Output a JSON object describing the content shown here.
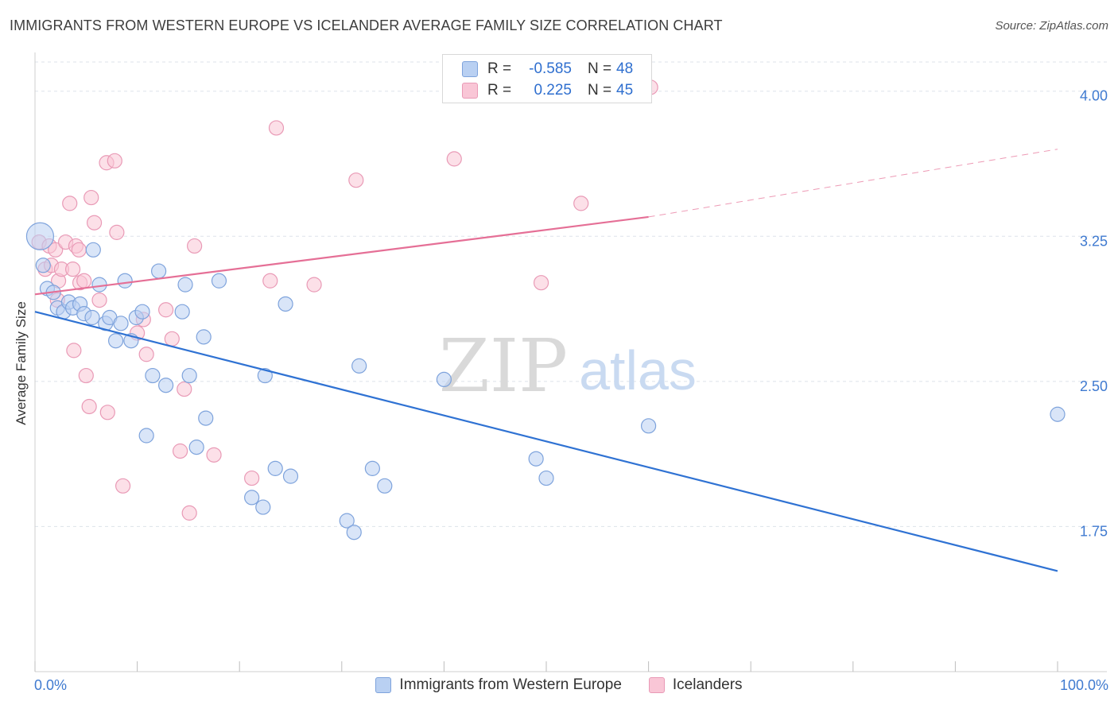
{
  "header": {
    "title": "IMMIGRANTS FROM WESTERN EUROPE VS ICELANDER AVERAGE FAMILY SIZE CORRELATION CHART",
    "source": "Source: ZipAtlas.com"
  },
  "legend": {
    "blue_label": "Immigrants from Western Europe",
    "pink_label": "Icelanders"
  },
  "stats": {
    "r_label": "R =",
    "n_label": "N =",
    "blue": {
      "r": "-0.585",
      "n": "48"
    },
    "pink": {
      "r": "0.225",
      "n": "45"
    }
  },
  "colors": {
    "blue_fill": "#b9d0f2",
    "blue_stroke": "#7ea3dc",
    "blue_line": "#2f72d3",
    "pink_fill": "#f9c6d6",
    "pink_stroke": "#e99ab6",
    "pink_line": "#e56f96",
    "grid": "#dde3ea",
    "tick_text": "#3f7ad0"
  },
  "chart_data": {
    "type": "scatter",
    "title": "IMMIGRANTS FROM WESTERN EUROPE VS ICELANDER AVERAGE FAMILY SIZE CORRELATION CHART",
    "xlabel": "",
    "ylabel": "Average Family Size",
    "x_tick_labels": [
      "0.0%",
      "100.0%"
    ],
    "xlim": [
      0,
      100
    ],
    "ylim": [
      1.0,
      4.2
    ],
    "yticks": [
      1.75,
      2.5,
      3.25,
      4.0
    ],
    "ytick_labels": [
      "1.75",
      "2.50",
      "3.25",
      "4.00"
    ],
    "grid": true,
    "watermark": {
      "zip": "ZIP",
      "atlas": "atlas"
    },
    "series": [
      {
        "name": "Immigrants from Western Europe",
        "color": "blue",
        "points": [
          [
            0.5,
            3.25
          ],
          [
            0.8,
            3.1
          ],
          [
            1.2,
            2.98
          ],
          [
            1.8,
            2.96
          ],
          [
            2.2,
            2.88
          ],
          [
            2.8,
            2.86
          ],
          [
            3.3,
            2.91
          ],
          [
            3.7,
            2.88
          ],
          [
            4.4,
            2.9
          ],
          [
            4.8,
            2.85
          ],
          [
            5.6,
            2.83
          ],
          [
            5.7,
            3.18
          ],
          [
            6.3,
            3.0
          ],
          [
            6.9,
            2.8
          ],
          [
            7.3,
            2.83
          ],
          [
            7.9,
            2.71
          ],
          [
            8.4,
            2.8
          ],
          [
            8.8,
            3.02
          ],
          [
            9.4,
            2.71
          ],
          [
            9.9,
            2.83
          ],
          [
            10.5,
            2.86
          ],
          [
            11.5,
            2.53
          ],
          [
            12.1,
            3.07
          ],
          [
            12.8,
            2.48
          ],
          [
            14.4,
            2.86
          ],
          [
            14.7,
            3.0
          ],
          [
            15.1,
            2.53
          ],
          [
            15.8,
            2.16
          ],
          [
            16.5,
            2.73
          ],
          [
            16.7,
            2.31
          ],
          [
            18.0,
            3.02
          ],
          [
            10.9,
            2.22
          ],
          [
            21.2,
            1.9
          ],
          [
            22.3,
            1.85
          ],
          [
            22.5,
            2.53
          ],
          [
            23.5,
            2.05
          ],
          [
            24.5,
            2.9
          ],
          [
            25.0,
            2.01
          ],
          [
            30.5,
            1.78
          ],
          [
            31.2,
            1.72
          ],
          [
            31.7,
            2.58
          ],
          [
            33.0,
            2.05
          ],
          [
            34.2,
            1.96
          ],
          [
            40.0,
            2.51
          ],
          [
            49.0,
            2.1
          ],
          [
            50.0,
            2.0
          ],
          [
            60.0,
            2.27
          ],
          [
            100.0,
            2.33
          ]
        ],
        "trend": {
          "x0": 0,
          "y0": 2.86,
          "x1": 100,
          "y1": 1.52
        }
      },
      {
        "name": "Icelanders",
        "color": "pink",
        "points": [
          [
            0.4,
            3.22
          ],
          [
            1.0,
            3.08
          ],
          [
            1.4,
            3.2
          ],
          [
            1.6,
            3.1
          ],
          [
            2.0,
            3.18
          ],
          [
            2.2,
            2.92
          ],
          [
            2.3,
            3.02
          ],
          [
            2.6,
            3.08
          ],
          [
            3.0,
            3.22
          ],
          [
            3.4,
            3.42
          ],
          [
            3.7,
            3.08
          ],
          [
            3.8,
            2.66
          ],
          [
            4.0,
            3.2
          ],
          [
            4.3,
            3.18
          ],
          [
            4.4,
            3.01
          ],
          [
            4.8,
            3.02
          ],
          [
            5.0,
            2.53
          ],
          [
            5.3,
            2.37
          ],
          [
            5.5,
            3.45
          ],
          [
            5.8,
            3.32
          ],
          [
            6.3,
            2.92
          ],
          [
            7.1,
            2.34
          ],
          [
            7.0,
            3.63
          ],
          [
            7.8,
            3.64
          ],
          [
            8.0,
            3.27
          ],
          [
            8.6,
            1.96
          ],
          [
            10.0,
            2.75
          ],
          [
            10.6,
            2.82
          ],
          [
            10.9,
            2.64
          ],
          [
            12.8,
            2.87
          ],
          [
            13.4,
            2.72
          ],
          [
            14.2,
            2.14
          ],
          [
            14.6,
            2.46
          ],
          [
            15.1,
            1.82
          ],
          [
            15.6,
            3.2
          ],
          [
            17.5,
            2.12
          ],
          [
            21.2,
            2.0
          ],
          [
            23.0,
            3.02
          ],
          [
            23.6,
            3.81
          ],
          [
            27.3,
            3.0
          ],
          [
            31.4,
            3.54
          ],
          [
            41.0,
            3.65
          ],
          [
            49.5,
            3.01
          ],
          [
            53.4,
            3.42
          ],
          [
            60.2,
            4.02
          ]
        ],
        "trend": {
          "x0": 0,
          "y0": 2.95,
          "x1": 60,
          "y1": 3.35
        },
        "trend_dashed_extension": {
          "x0": 60,
          "y0": 3.35,
          "x1": 100,
          "y1": 3.7
        }
      }
    ]
  }
}
